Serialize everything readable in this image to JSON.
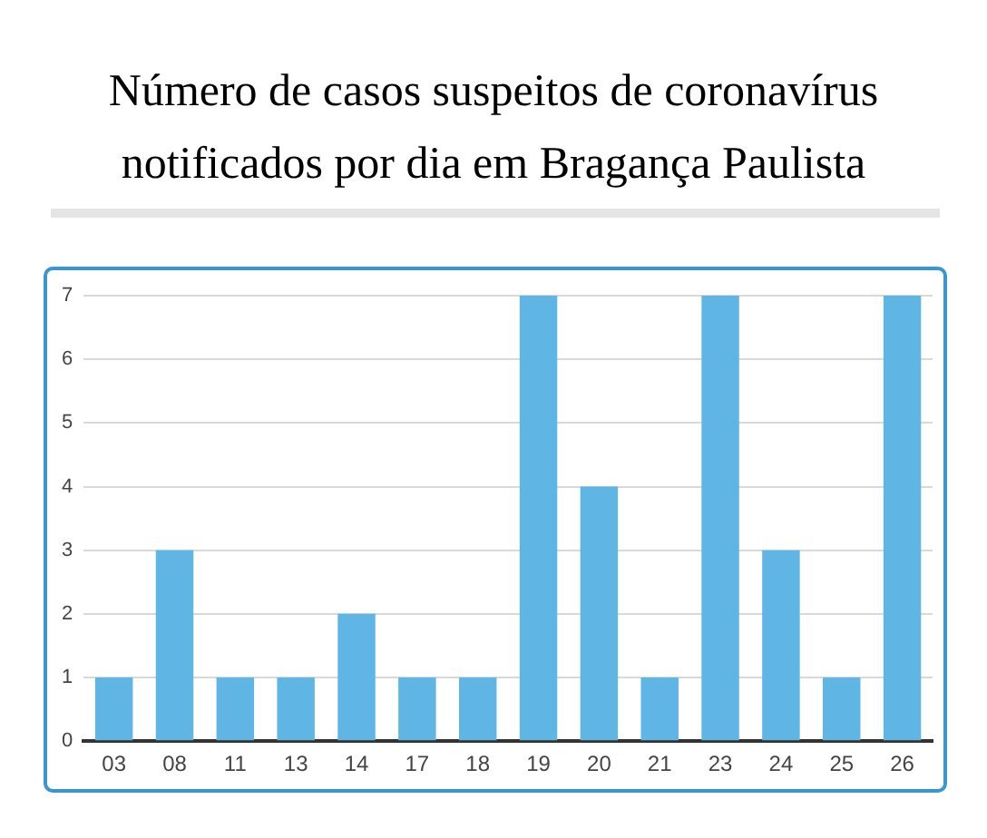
{
  "chart_data": {
    "type": "bar",
    "title": "Número de casos suspeitos de coronavírus notificados por dia em Bragança Paulista",
    "categories": [
      "03",
      "08",
      "11",
      "13",
      "14",
      "17",
      "18",
      "19",
      "20",
      "21",
      "23",
      "24",
      "25",
      "26"
    ],
    "values": [
      1,
      3,
      1,
      1,
      2,
      1,
      1,
      7,
      4,
      1,
      7,
      3,
      1,
      7
    ],
    "color": "#5fb5e3",
    "ylim": [
      0,
      7
    ],
    "yticks": [
      0,
      1,
      2,
      3,
      4,
      5,
      6,
      7
    ],
    "grid": "y"
  }
}
